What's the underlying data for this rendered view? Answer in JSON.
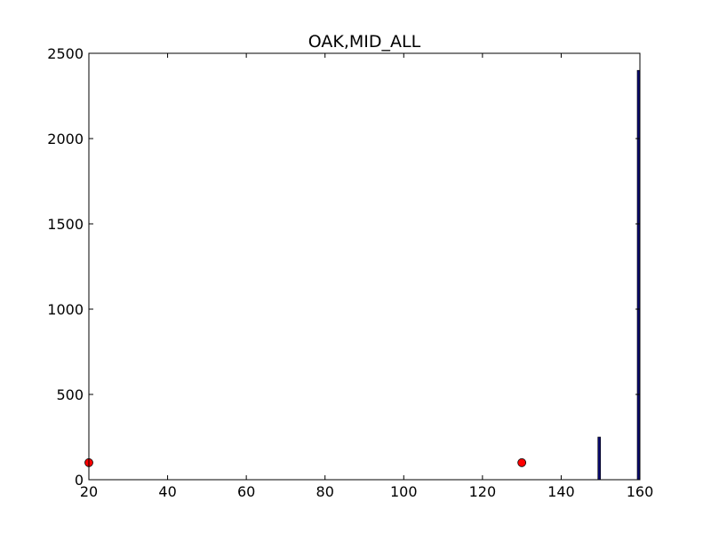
{
  "chart_data": {
    "type": "bar",
    "title": "OAK,MID_ALL",
    "xlabel": "",
    "ylabel": "",
    "xlim": [
      20,
      160
    ],
    "ylim": [
      0,
      2500
    ],
    "xticks": [
      20,
      40,
      60,
      80,
      100,
      120,
      140,
      160
    ],
    "yticks": [
      0,
      500,
      1000,
      1500,
      2000,
      2500
    ],
    "grid": false,
    "bars": [
      {
        "x": 150,
        "value": 250
      },
      {
        "x": 160,
        "value": 2400
      }
    ],
    "points": [
      {
        "x": 20,
        "y": 100
      },
      {
        "x": 130,
        "y": 100
      }
    ],
    "colors": {
      "bar_fill": "#0a0a6e",
      "bar_edge": "#000000",
      "point_fill": "#ff0000",
      "point_edge": "#000000"
    }
  }
}
